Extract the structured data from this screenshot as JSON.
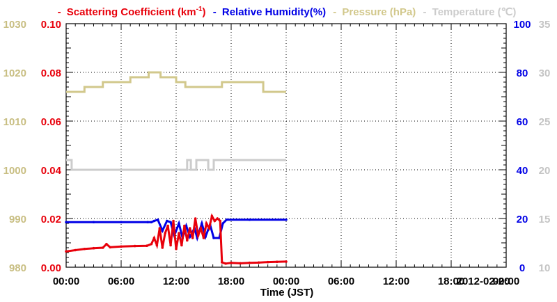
{
  "chart_data": {
    "type": "line",
    "legend": [
      {
        "marker": "-",
        "text": "Scattering Coefficient (km",
        "sup": "-1",
        "close": ")",
        "color": "#e8000b"
      },
      {
        "marker": "-",
        "text": "Relative Humidity(%)",
        "color": "#0000e6"
      },
      {
        "marker": "-",
        "text": "Pressure (hPa)",
        "color": "#d2c88c"
      },
      {
        "marker": "-",
        "text": "Temperature (℃)",
        "color": "#cccccc"
      }
    ],
    "xlabel": "Time (JST)",
    "date_label": "2012-02-20",
    "x_range_hours": [
      0,
      48
    ],
    "x_ticks": [
      {
        "h": 0,
        "label": "00:00"
      },
      {
        "h": 6,
        "label": "06:00"
      },
      {
        "h": 12,
        "label": "12:00"
      },
      {
        "h": 18,
        "label": "18:00"
      },
      {
        "h": 24,
        "label": "00:00"
      },
      {
        "h": 30,
        "label": "06:00"
      },
      {
        "h": 36,
        "label": "12:00"
      },
      {
        "h": 42,
        "label": "18:00"
      },
      {
        "h": 48,
        "label": "00:00"
      }
    ],
    "grid": true,
    "axes": {
      "pressure": {
        "range": [
          980,
          1030
        ],
        "ticks": [
          "980",
          "990",
          "1000",
          "1010",
          "1020",
          "1030"
        ],
        "color": "#c8be82"
      },
      "scattering": {
        "range": [
          0,
          0.1
        ],
        "ticks": [
          "0.00",
          "0.02",
          "0.04",
          "0.06",
          "0.08",
          "0.10"
        ],
        "color": "#e8000b"
      },
      "humidity": {
        "range": [
          0,
          100
        ],
        "ticks": [
          "0",
          "20",
          "40",
          "60",
          "80",
          "100"
        ],
        "color": "#0000e6"
      },
      "temperature": {
        "range": [
          10,
          35
        ],
        "ticks": [
          "10",
          "15",
          "20",
          "25",
          "30",
          "35"
        ],
        "color": "#c4c4c4"
      }
    },
    "series": [
      {
        "name": "Pressure (hPa)",
        "axis": "pressure",
        "color": "#d2c88c",
        "step": true,
        "points": [
          [
            0,
            1016
          ],
          [
            2,
            1017
          ],
          [
            4,
            1018
          ],
          [
            7,
            1019
          ],
          [
            9,
            1020
          ],
          [
            10.3,
            1019
          ],
          [
            12,
            1018
          ],
          [
            13,
            1017
          ],
          [
            17,
            1018
          ],
          [
            21.5,
            1016
          ],
          [
            24,
            1016
          ]
        ]
      },
      {
        "name": "Temperature (℃)",
        "axis": "temperature",
        "color": "#cccccc",
        "step": true,
        "points": [
          [
            0,
            21
          ],
          [
            0.6,
            20
          ],
          [
            13.2,
            21
          ],
          [
            13.6,
            20
          ],
          [
            14.2,
            21
          ],
          [
            15.5,
            20
          ],
          [
            16.1,
            21
          ],
          [
            24,
            21
          ]
        ]
      },
      {
        "name": "Relative Humidity(%)",
        "axis": "humidity",
        "color": "#0000e6",
        "step": false,
        "points": [
          [
            0,
            18.5
          ],
          [
            3,
            18.5
          ],
          [
            6,
            18.5
          ],
          [
            8.9,
            18.5
          ],
          [
            9.3,
            18.5
          ],
          [
            9.6,
            19
          ],
          [
            10,
            19.5
          ],
          [
            10.5,
            15
          ],
          [
            11,
            19
          ],
          [
            11.4,
            18.5
          ],
          [
            11.8,
            13
          ],
          [
            12.3,
            18
          ],
          [
            12.7,
            12
          ],
          [
            13.1,
            17
          ],
          [
            13.5,
            12.5
          ],
          [
            14,
            16
          ],
          [
            14.3,
            12
          ],
          [
            14.8,
            18
          ],
          [
            15.2,
            12.5
          ],
          [
            15.7,
            17.5
          ],
          [
            16.1,
            12
          ],
          [
            16.7,
            12
          ],
          [
            17.1,
            18
          ],
          [
            17.5,
            19.5
          ],
          [
            20,
            19.5
          ],
          [
            24,
            19.5
          ]
        ]
      },
      {
        "name": "Scattering Coefficient",
        "axis": "scattering",
        "color": "#e8000b",
        "step": false,
        "points": [
          [
            0,
            0.0065
          ],
          [
            1,
            0.007
          ],
          [
            2,
            0.0075
          ],
          [
            3,
            0.0078
          ],
          [
            4,
            0.008
          ],
          [
            4.4,
            0.0095
          ],
          [
            4.8,
            0.0082
          ],
          [
            6,
            0.0085
          ],
          [
            7.5,
            0.0087
          ],
          [
            8.8,
            0.0088
          ],
          [
            9.3,
            0.0095
          ],
          [
            9.6,
            0.012
          ],
          [
            9.9,
            0.009
          ],
          [
            10.2,
            0.016
          ],
          [
            10.5,
            0.008
          ],
          [
            10.8,
            0.014
          ],
          [
            11.1,
            0.017
          ],
          [
            11.4,
            0.009
          ],
          [
            11.7,
            0.019
          ],
          [
            12,
            0.0075
          ],
          [
            12.3,
            0.014
          ],
          [
            12.6,
            0.009
          ],
          [
            12.9,
            0.017
          ],
          [
            13.2,
            0.011
          ],
          [
            13.5,
            0.016
          ],
          [
            13.8,
            0.012
          ],
          [
            14.1,
            0.02
          ],
          [
            14.4,
            0.013
          ],
          [
            14.7,
            0.016
          ],
          [
            15,
            0.012
          ],
          [
            15.3,
            0.018
          ],
          [
            15.6,
            0.016
          ],
          [
            15.9,
            0.021
          ],
          [
            16.2,
            0.019
          ],
          [
            16.5,
            0.02
          ],
          [
            16.8,
            0.019
          ],
          [
            17,
            0.002
          ],
          [
            17.4,
            0.0015
          ],
          [
            18,
            0.0018
          ],
          [
            19,
            0.0016
          ],
          [
            20,
            0.0018
          ],
          [
            21,
            0.0019
          ],
          [
            22,
            0.0021
          ],
          [
            23,
            0.0022
          ],
          [
            24,
            0.0023
          ]
        ]
      }
    ]
  }
}
